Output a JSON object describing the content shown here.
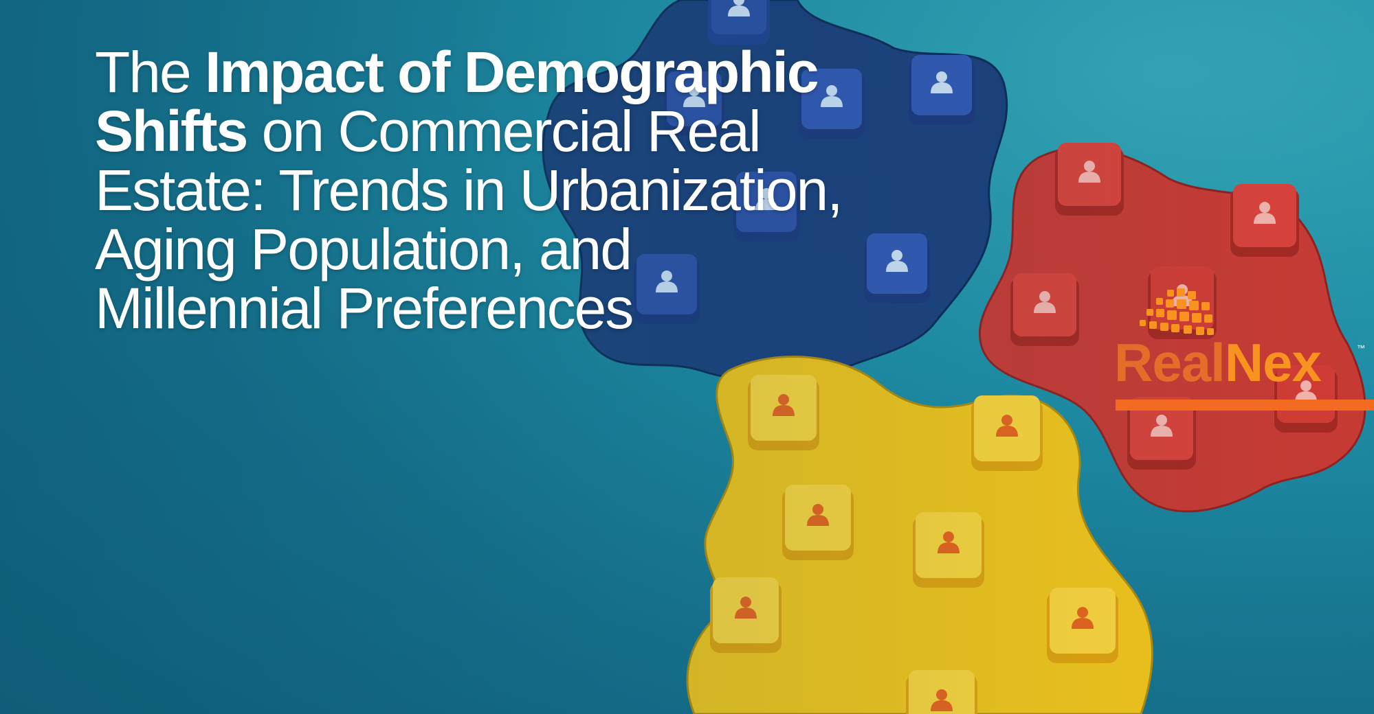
{
  "headline": {
    "part1": "The ",
    "part2_bold": "Impact of Demographic Shifts",
    "part3": " on Commercial Real Estate: Trends in Urbanization, Aging Population, and Millennial Preferences"
  },
  "logo": {
    "word_1": "Real",
    "word_2": "Nex",
    "trademark": "™",
    "color_1": "#e46d2a",
    "color_2": "#f7931e"
  },
  "colors": {
    "background": "#1a8aa3",
    "blue_group": "#1c3f7a",
    "red_group": "#c73a33",
    "yellow_group": "#f2c319",
    "accent_bar": "#f26b21"
  },
  "illustration": {
    "description_icons": [
      "person-cube-icon"
    ]
  }
}
